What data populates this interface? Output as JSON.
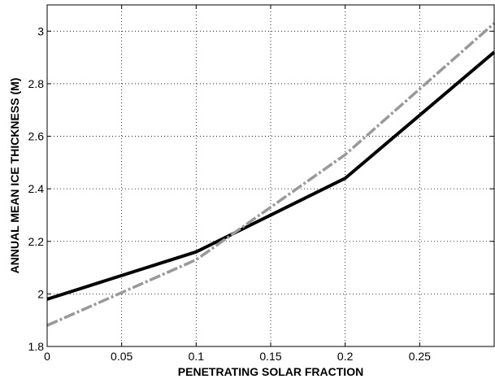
{
  "chart_data": {
    "type": "line",
    "title": "",
    "xlabel": "PENETRATING SOLAR FRACTION",
    "ylabel": "ANNUAL MEAN ICE THICKNESS (M)",
    "xlim": [
      0,
      0.3
    ],
    "ylim": [
      1.8,
      3.1
    ],
    "xticks": [
      0,
      0.05,
      0.1,
      0.15,
      0.2,
      0.25
    ],
    "xtick_labels": [
      "0",
      "0.05",
      "0.1",
      "0.15",
      "0.2",
      "0.25"
    ],
    "yticks": [
      1.8,
      2.0,
      2.2,
      2.4,
      2.6,
      2.8,
      3.0
    ],
    "ytick_labels": [
      "1.8",
      "2",
      "2.2",
      "2.4",
      "2.6",
      "2.8",
      "3"
    ],
    "grid": true,
    "series": [
      {
        "color": "#000000",
        "style": "solid",
        "x": [
          0,
          0.1,
          0.2,
          0.3
        ],
        "values": [
          1.98,
          2.16,
          2.44,
          2.92
        ]
      },
      {
        "color": "#999999",
        "style": "dashdot",
        "x": [
          0,
          0.1,
          0.2,
          0.3
        ],
        "values": [
          1.88,
          2.13,
          2.53,
          3.03
        ]
      }
    ]
  }
}
